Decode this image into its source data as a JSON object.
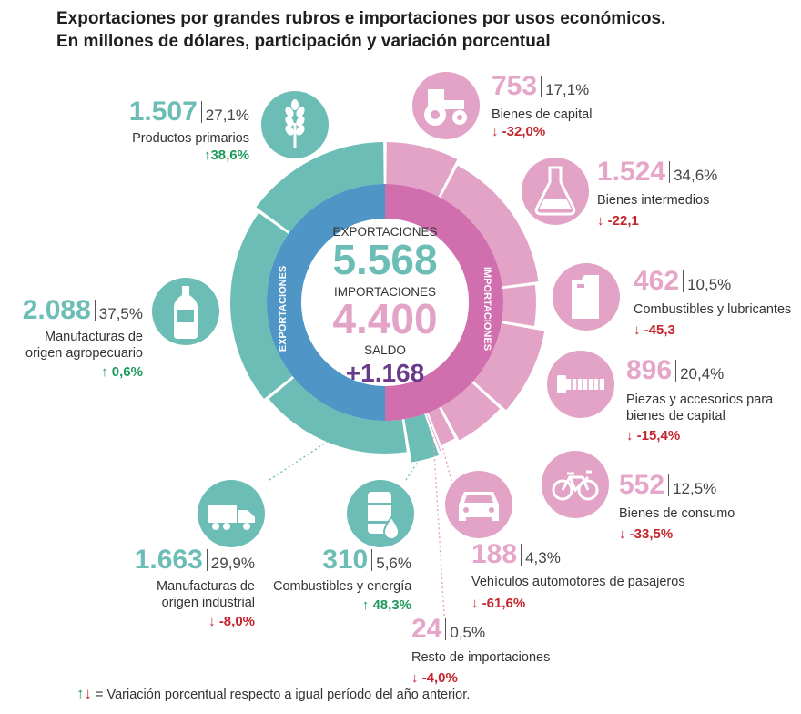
{
  "title_line1": "Exportaciones por grandes rubros e importaciones por usos económicos.",
  "title_line2": "En millones de dólares, participación y variación porcentual",
  "center": {
    "exp_label": "EXPORTACIONES",
    "exp_value": "5.568",
    "imp_label": "IMPORTACIONES",
    "imp_value": "4.400",
    "saldo_label": "SALDO",
    "saldo_value": "+1.168"
  },
  "ring_labels": {
    "left": "EXPORTACIONES",
    "right": "IMPORTACIONES"
  },
  "colors": {
    "exports": "#6cbdb5",
    "exports_inner": "#4f96c6",
    "imports": "#e2a3c6",
    "imports_inner": "#d16fae",
    "up": "#1e9a5a",
    "down": "#c4262e",
    "saldo": "#6a3a8a"
  },
  "chart_data": {
    "type": "pie",
    "title": "Exportaciones por grandes rubros e importaciones por usos económicos. En millones de dólares, participación y variación porcentual",
    "exportaciones": {
      "total": 5568,
      "items": [
        {
          "name": "Productos primarios",
          "value": "1.507",
          "share": "27,1%",
          "variation": "38,6%",
          "dir": "up",
          "icon": "wheat-icon"
        },
        {
          "name": "Manufacturas de origen agropecuario",
          "value": "2.088",
          "share": "37,5%",
          "variation": "0,6%",
          "dir": "up",
          "icon": "bottle-icon"
        },
        {
          "name": "Manufacturas de origen industrial",
          "value": "1.663",
          "share": "29,9%",
          "variation": "-8,0%",
          "dir": "down",
          "icon": "truck-icon"
        },
        {
          "name": "Combustibles y energía",
          "value": "310",
          "share": "5,6%",
          "variation": "48,3%",
          "dir": "up",
          "icon": "oil-barrel-icon"
        }
      ]
    },
    "importaciones": {
      "total": 4400,
      "items": [
        {
          "name": "Bienes de capital",
          "value": "753",
          "share": "17,1%",
          "variation": "-32,0%",
          "dir": "down",
          "icon": "tractor-icon"
        },
        {
          "name": "Bienes intermedios",
          "value": "1.524",
          "share": "34,6%",
          "variation": "-22,1",
          "dir": "down",
          "icon": "flask-icon"
        },
        {
          "name": "Combustibles y lubricantes",
          "value": "462",
          "share": "10,5%",
          "variation": "-45,3",
          "dir": "down",
          "icon": "jerrycan-icon"
        },
        {
          "name": "Piezas y accesorios para bienes de capital",
          "value": "896",
          "share": "20,4%",
          "variation": "-15,4%",
          "dir": "down",
          "icon": "bolt-icon"
        },
        {
          "name": "Bienes de consumo",
          "value": "552",
          "share": "12,5%",
          "variation": "-33,5%",
          "dir": "down",
          "icon": "bicycle-icon"
        },
        {
          "name": "Vehículos automotores de pasajeros",
          "value": "188",
          "share": "4,3%",
          "variation": "-61,6%",
          "dir": "down",
          "icon": "car-icon"
        },
        {
          "name": "Resto de importaciones",
          "value": "24",
          "share": "0,5%",
          "variation": "-4,0%",
          "dir": "down",
          "icon": ""
        }
      ]
    },
    "saldo": 1168
  },
  "legend": {
    "up": "↑",
    "down": "↓",
    "text": "=  Variación porcentual respecto a igual período del año anterior."
  }
}
